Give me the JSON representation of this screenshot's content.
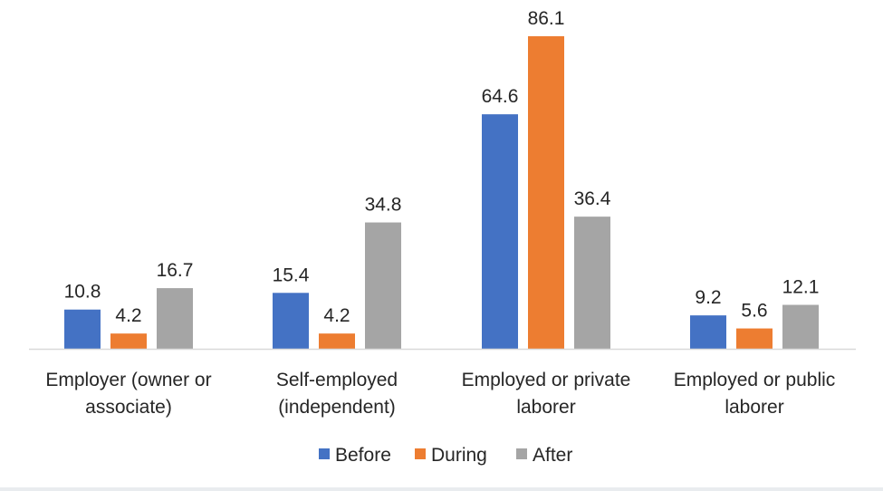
{
  "chart_data": {
    "type": "bar",
    "categories": [
      [
        "Employer (owner or",
        "associate)"
      ],
      [
        "Self-employed",
        "(independent)"
      ],
      [
        "Employed or private",
        "laborer"
      ],
      [
        "Employed or public",
        "laborer"
      ]
    ],
    "series": [
      {
        "name": "Before",
        "color": "#4472c4",
        "values": [
          10.8,
          15.4,
          64.6,
          9.2
        ]
      },
      {
        "name": "During",
        "color": "#ed7d31",
        "values": [
          4.2,
          4.2,
          86.1,
          5.6
        ]
      },
      {
        "name": "After",
        "color": "#a5a5a5",
        "values": [
          16.7,
          34.8,
          36.4,
          12.1
        ]
      }
    ],
    "ylim": [
      0,
      86.1
    ],
    "grid": false,
    "legend": "bottom",
    "axis_color": "#d9d9d9"
  }
}
